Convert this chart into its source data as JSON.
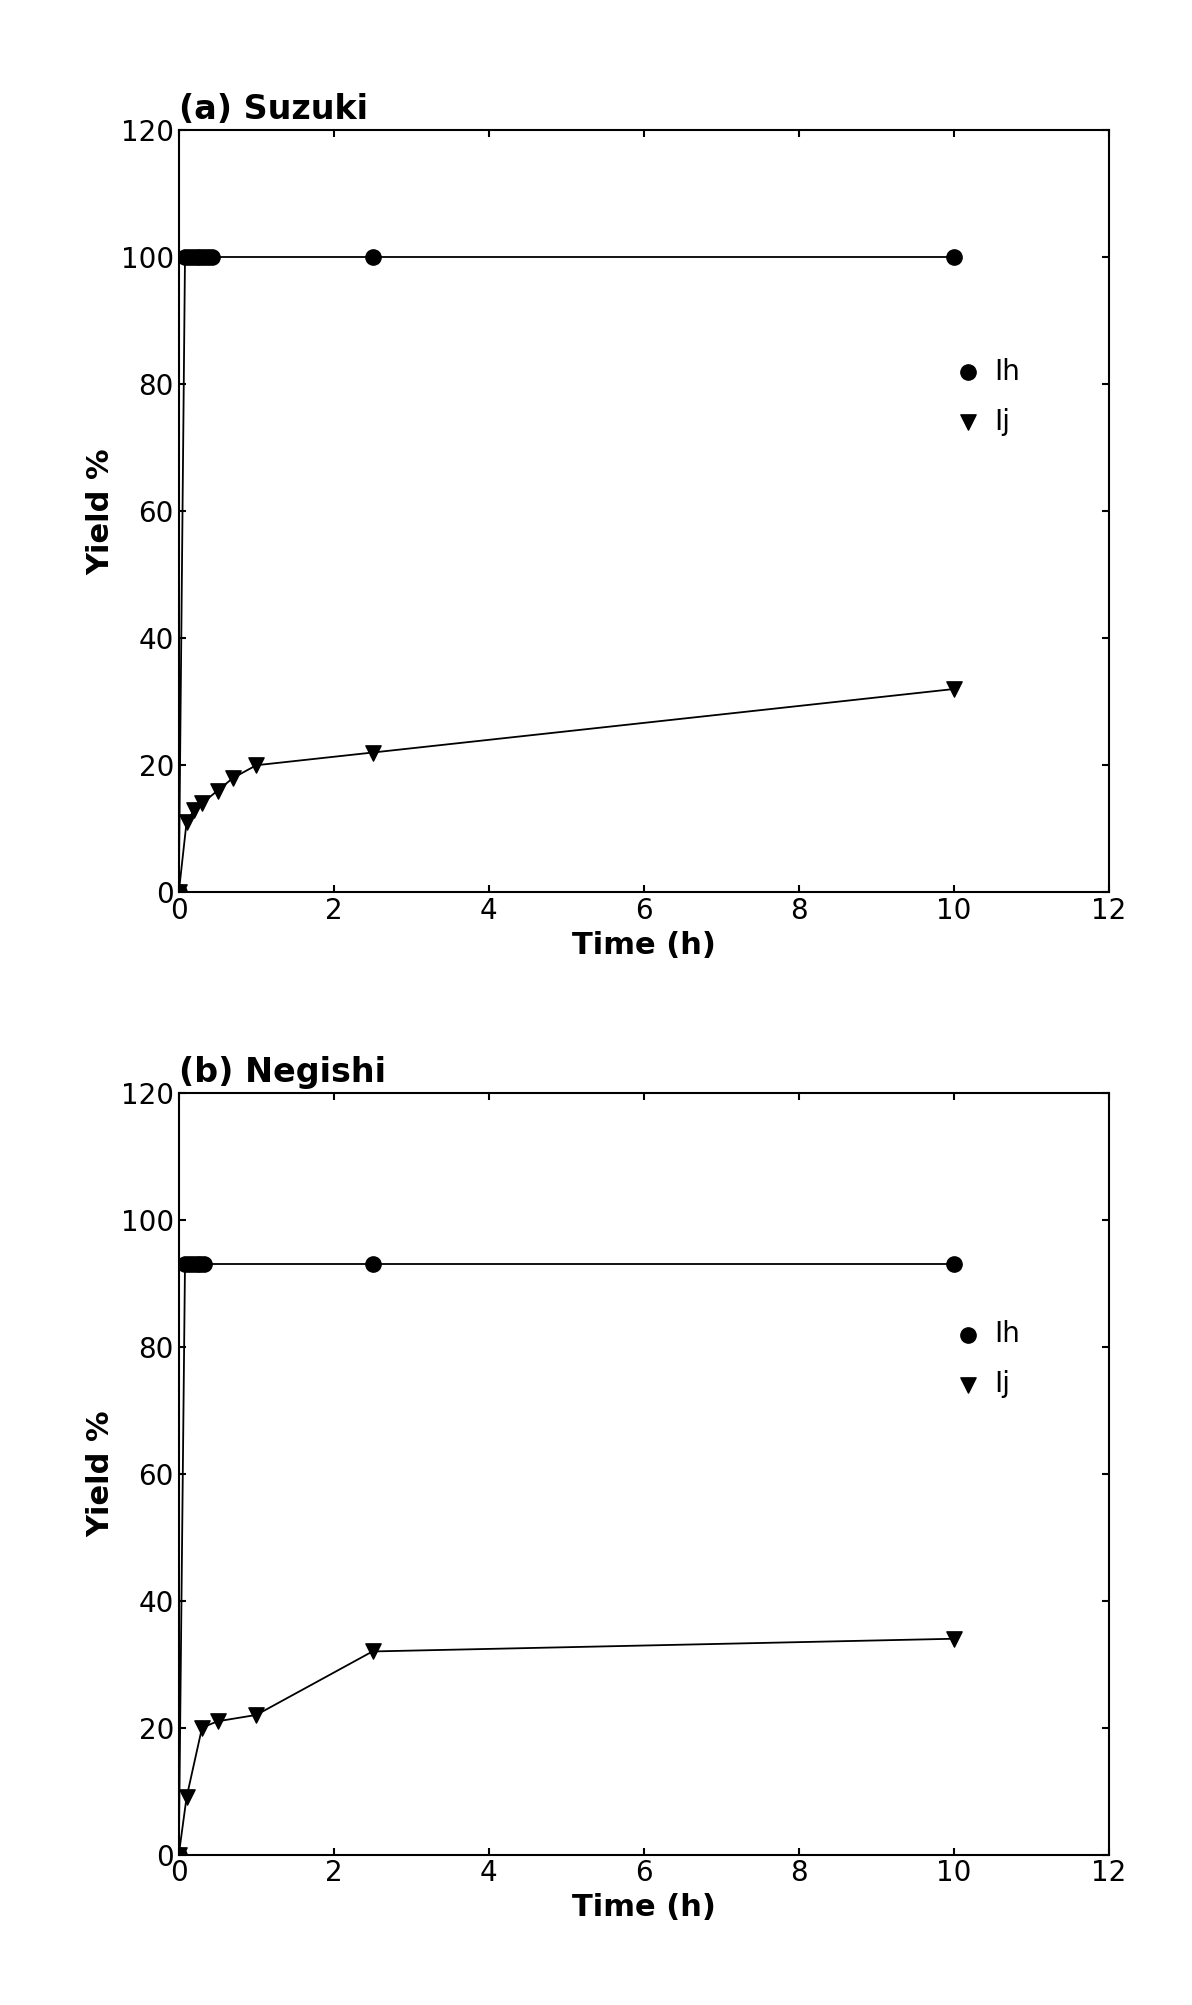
{
  "title_a": "(a) Suzuki",
  "title_b": "(b) Negishi",
  "xlabel": "Time (h)",
  "ylabel": "Yield %",
  "xlim": [
    0,
    12
  ],
  "ylim": [
    0,
    120
  ],
  "xticks": [
    0,
    2,
    4,
    6,
    8,
    10,
    12
  ],
  "yticks": [
    0,
    20,
    40,
    60,
    80,
    100,
    120
  ],
  "suzuki_Ih_x": [
    0,
    0.08,
    0.13,
    0.18,
    0.23,
    0.28,
    0.33,
    0.38,
    0.43,
    2.5,
    10
  ],
  "suzuki_Ih_y": [
    0,
    100,
    100,
    100,
    100,
    100,
    100,
    100,
    100,
    100,
    100
  ],
  "suzuki_Ij_x": [
    0,
    0.1,
    0.2,
    0.3,
    0.5,
    0.7,
    1.0,
    2.5,
    10
  ],
  "suzuki_Ij_y": [
    0,
    11,
    13,
    14,
    16,
    18,
    20,
    22,
    32
  ],
  "negishi_Ih_x": [
    0,
    0.08,
    0.13,
    0.18,
    0.23,
    0.28,
    0.33,
    2.5,
    10
  ],
  "negishi_Ih_y": [
    0,
    93,
    93,
    93,
    93,
    93,
    93,
    93,
    93
  ],
  "negishi_Ij_x": [
    0,
    0.1,
    0.3,
    0.5,
    1.0,
    2.5,
    10
  ],
  "negishi_Ij_y": [
    0,
    9,
    20,
    21,
    22,
    32,
    34
  ],
  "legend_Ih": "Ih",
  "legend_Ij": "Ij",
  "color": "#000000",
  "bg_color": "#ffffff",
  "marker_circle": "o",
  "marker_triangle": "v",
  "marker_size": 11,
  "line_width": 1.3,
  "title_fontsize": 24,
  "label_fontsize": 22,
  "tick_fontsize": 20,
  "legend_fontsize": 20
}
